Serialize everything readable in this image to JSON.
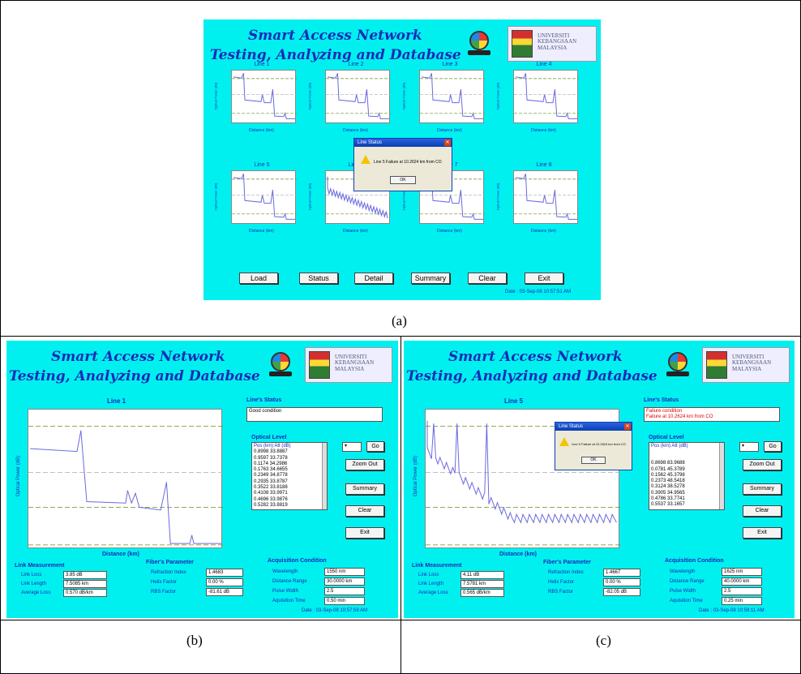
{
  "captions": {
    "a": "(a)",
    "b": "(b)",
    "c": "(c)"
  },
  "app": {
    "title_line1": "Smart Access Network",
    "title_line2": "Testing, Analyzing and Database",
    "university": [
      "UNIVERSITI",
      "KEBANGSAAN",
      "MALAYSIA"
    ]
  },
  "overview": {
    "lines": [
      "Line 1",
      "Line 2",
      "Line 3",
      "Line 4",
      "Line 5",
      "Line 6",
      "Line 7",
      "Line 8"
    ],
    "y_label": "Optical Power (dB)",
    "x_label": "Distance (km)",
    "buttons": {
      "load": "Load",
      "status": "Status",
      "detail": "Detail",
      "summary": "Summary",
      "clear": "Clear",
      "exit": "Exit"
    },
    "date": "Date : 03-Sep-08 10:57:51 AM",
    "dialog": {
      "title": "Line Status",
      "message": "Line 5 Failure at 10.2624 km from CO",
      "ok": "OK"
    }
  },
  "detail_b": {
    "line_title": "Line 1",
    "status_label": "Line's Status",
    "status_text": "Good condition",
    "optical_label": "Optical Level",
    "optical_header": "Pos (km)  Att (dB)",
    "optical_rows": [
      "0.8998 33.8887",
      "0.9597 33.7378",
      "0.1174 34.2986",
      "0.1763 34.6655",
      "0.2349 34.8778",
      "0.2935 33.8787",
      "0.3522 33.8188",
      "0.4108 33.9971",
      "0.4696 33.9876",
      "0.5282 33.8819"
    ],
    "go": "Go",
    "zoom_out": "Zoom Out",
    "summary": "Summary",
    "clear": "Clear",
    "exit": "Exit",
    "y_label": "Optical Power (dB)",
    "x_label": "Distance (km)",
    "acq_label": "Acquisition Condition",
    "acq": [
      {
        "label": "Wavelength",
        "value": "1550 nm"
      },
      {
        "label": "Distance Range",
        "value": "30.0000 km"
      },
      {
        "label": "Pulse Width",
        "value": "2.5"
      },
      {
        "label": "Aquisition Time",
        "value": "0.50 min"
      }
    ],
    "link_label": "Link Measurement",
    "link": [
      {
        "label": "Link Loss",
        "value": "3.85 dB"
      },
      {
        "label": "Link Length",
        "value": "7.5085 km"
      },
      {
        "label": "Average Loss",
        "value": "0.570 dB/km"
      }
    ],
    "fiber_label": "Fiber's Parameter",
    "fiber": [
      {
        "label": "Refraction Index",
        "value": "1.4683"
      },
      {
        "label": "Helix Factor",
        "value": "0.00 %"
      },
      {
        "label": "RBS Factor",
        "value": "-81.61 dB"
      }
    ],
    "date": "Date : 03-Sep-08 10:57:59 AM"
  },
  "detail_c": {
    "line_title": "Line 5",
    "status_label": "Line's Status",
    "status_line1": "Failure condition",
    "status_line2": "Failure at 10.2624 km from CO",
    "optical_label": "Optical Level",
    "optical_header": "Pos (km)  Att (dB)",
    "optical_rows": [
      "0.8698 83.9688",
      "0.0781 45.3789",
      "0.1562 45.3798",
      "0.2373 48.5418",
      "0.3124 38.5278",
      "0.3905 34.9565",
      "0.4786 33.7741",
      "0.5537 33.1657"
    ],
    "go": "Go",
    "zoom_out": "Zoom Out",
    "summary": "Summary",
    "clear": "Clear",
    "exit": "Exit",
    "y_label": "Optical Power (dB)",
    "x_label": "Distance (km)",
    "acq_label": "Acquisition Condition",
    "acq": [
      {
        "label": "Wavelength",
        "value": "1625 nm"
      },
      {
        "label": "Distance Range",
        "value": "40.0000 km"
      },
      {
        "label": "Pulse Width",
        "value": "2.5"
      },
      {
        "label": "Aquisition Time",
        "value": "0.25 min"
      }
    ],
    "link_label": "Link Measurement",
    "link": [
      {
        "label": "Link Loss",
        "value": "4.11 dB"
      },
      {
        "label": "Link Length",
        "value": "7.5781 km"
      },
      {
        "label": "Average Loss",
        "value": "0.565 dB/km"
      }
    ],
    "fiber_label": "Fiber's Parameter",
    "fiber": [
      {
        "label": "Refraction Index",
        "value": "1.4667"
      },
      {
        "label": "Helix Factor",
        "value": "0.00 %"
      },
      {
        "label": "RBS Factor",
        "value": "-82.05 dB"
      }
    ],
    "dialog": {
      "title": "Line Status",
      "message": "Line 5 Failure at 10.2624 km from CO",
      "ok": "OK"
    },
    "date": "Date : 03-Sep-08 10:59:11 AM"
  },
  "colors": {
    "background": "#00f0f0",
    "title": "#1a2bb8",
    "trace": "#6a6ae0",
    "failure_text": "#e00000"
  }
}
